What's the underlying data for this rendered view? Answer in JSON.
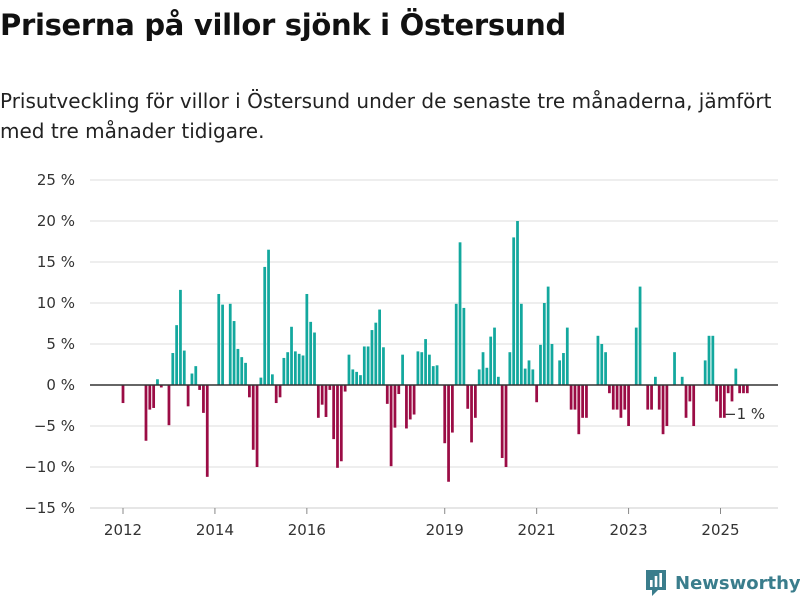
{
  "title": "Priserna på villor sjönk i Östersund",
  "subtitle": "Prisutveckling för villor i Östersund under de senaste tre månaderna, jämfört med tre månader tidigare.",
  "brand": "Newsworthy",
  "annotation": "−1 %",
  "colors": {
    "positive": "#13a89e",
    "negative": "#9b0c45",
    "grid": "#dddddd",
    "zero": "#333333",
    "brand": "#3a7d8c"
  },
  "chart_data": {
    "type": "bar",
    "x_start": "2012-01",
    "x_end": "2025-08",
    "x_step": "month",
    "ylim": [
      -15,
      25
    ],
    "ylabel": "",
    "xlabel": "",
    "y_ticks": [
      "25 %",
      "20 %",
      "15 %",
      "10 %",
      "5 %",
      "0 %",
      "−5 %",
      "−10 %",
      "−15 %"
    ],
    "y_tick_values": [
      25,
      20,
      15,
      10,
      5,
      0,
      -5,
      -10,
      -15
    ],
    "x_ticks": [
      "2012",
      "2014",
      "2016",
      "2019",
      "2021",
      "2023",
      "2025"
    ],
    "x_tick_dates": [
      "2012-01",
      "2014-01",
      "2016-01",
      "2019-01",
      "2021-01",
      "2023-01",
      "2025-01"
    ],
    "grid": true,
    "values": [
      -2.2,
      0,
      0,
      0,
      0,
      0,
      -6.8,
      -3.0,
      -2.8,
      0.7,
      -0.3,
      0,
      -4.9,
      3.9,
      7.3,
      11.6,
      4.2,
      -2.6,
      1.4,
      2.3,
      -0.6,
      -3.4,
      -11.2,
      0,
      0,
      11.1,
      9.8,
      0,
      9.9,
      7.8,
      4.4,
      3.4,
      2.7,
      -1.5,
      -7.9,
      -10.0,
      0.9,
      14.4,
      16.5,
      1.3,
      -2.2,
      -1.5,
      3.3,
      4.0,
      7.1,
      4.1,
      3.8,
      3.6,
      11.1,
      7.7,
      6.4,
      -4.0,
      -2.4,
      -3.9,
      -0.6,
      -6.6,
      -10.1,
      -9.3,
      -0.8,
      3.7,
      1.9,
      1.6,
      1.2,
      4.7,
      4.7,
      6.7,
      7.6,
      9.2,
      4.6,
      -2.3,
      -9.9,
      -5.2,
      -1.1,
      3.7,
      -5.3,
      -4.2,
      -3.6,
      4.1,
      4.0,
      5.6,
      3.7,
      2.3,
      2.4,
      0,
      -7.1,
      -11.8,
      -5.8,
      9.9,
      17.4,
      9.4,
      -2.9,
      -7.0,
      -4.0,
      1.9,
      4.0,
      2.1,
      5.9,
      7.0,
      1.0,
      -8.9,
      -10.0,
      4.0,
      18.0,
      20.0,
      9.9,
      2.0,
      3.0,
      1.9,
      -2.1,
      4.9,
      10.0,
      12.0,
      5.0,
      0,
      3.0,
      3.9,
      7.0,
      -3.0,
      -3.0,
      -6.0,
      -4.0,
      -4.0,
      0,
      0,
      6.0,
      5.0,
      4.0,
      -1.0,
      -3.0,
      -3.0,
      -4.0,
      -3.0,
      -5.0,
      0,
      7.0,
      12.0,
      0,
      -3.0,
      -3.0,
      1.0,
      -3.0,
      -6.0,
      -5.0,
      0,
      4.0,
      0,
      1.0,
      -4.0,
      -2.0,
      -5.0,
      0,
      0,
      3.0,
      6.0,
      6.0,
      -2.0,
      -4.0,
      -4.0,
      -1.0,
      -2.0,
      2.0,
      -1.0,
      -1.0,
      -1.0
    ]
  }
}
